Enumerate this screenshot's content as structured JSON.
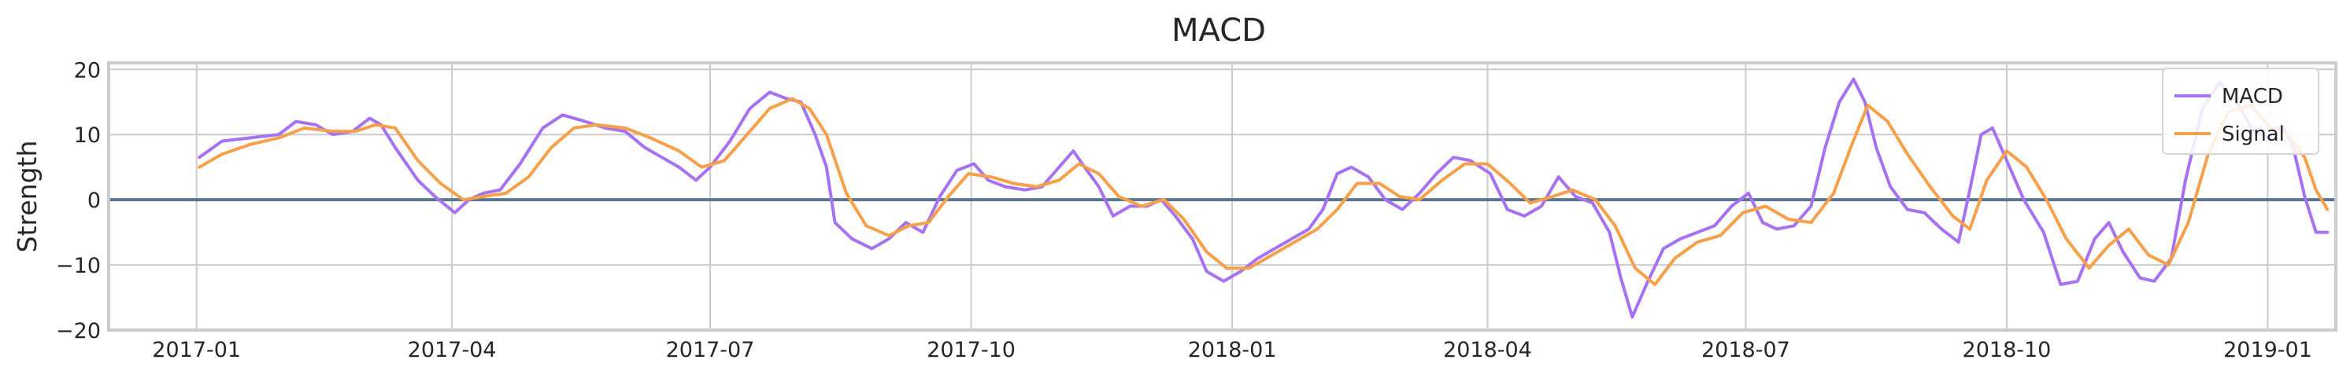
{
  "chart_data": {
    "type": "line",
    "title": "MACD",
    "ylabel": "Strength",
    "xlabel": "",
    "xlim": [
      "2016-12-01",
      "2019-01-25"
    ],
    "ylim": [
      -20,
      21
    ],
    "grid": true,
    "legend_position": "top-right",
    "x_ticks": [
      "2017-01-01",
      "2017-04-01",
      "2017-07-01",
      "2017-10-01",
      "2018-01-01",
      "2018-04-01",
      "2018-07-01",
      "2018-10-01",
      "2019-01-01"
    ],
    "x_tick_labels": [
      "2017-01",
      "2017-04",
      "2017-07",
      "2017-10",
      "2018-01",
      "2018-04",
      "2018-07",
      "2018-10",
      "2019-01"
    ],
    "y_ticks": [
      -20,
      -10,
      0,
      10,
      20
    ],
    "y_tick_labels": [
      "−20",
      "−10",
      "0",
      "10",
      "20"
    ],
    "reference_line": {
      "y": 0,
      "color": "#5a7690"
    },
    "series": [
      {
        "name": "MACD",
        "color": "#a772f2",
        "points": [
          [
            "2017-01-02",
            6.5
          ],
          [
            "2017-01-10",
            9.0
          ],
          [
            "2017-01-20",
            9.5
          ],
          [
            "2017-01-30",
            10.0
          ],
          [
            "2017-02-05",
            12.0
          ],
          [
            "2017-02-12",
            11.5
          ],
          [
            "2017-02-18",
            10.0
          ],
          [
            "2017-02-25",
            10.5
          ],
          [
            "2017-03-03",
            12.5
          ],
          [
            "2017-03-07",
            11.5
          ],
          [
            "2017-03-12",
            8.0
          ],
          [
            "2017-03-20",
            3.0
          ],
          [
            "2017-03-26",
            0.5
          ],
          [
            "2017-04-02",
            -2.0
          ],
          [
            "2017-04-07",
            0.0
          ],
          [
            "2017-04-12",
            1.0
          ],
          [
            "2017-04-18",
            1.5
          ],
          [
            "2017-04-25",
            5.5
          ],
          [
            "2017-05-03",
            11.0
          ],
          [
            "2017-05-10",
            13.0
          ],
          [
            "2017-05-18",
            12.0
          ],
          [
            "2017-05-25",
            11.0
          ],
          [
            "2017-06-01",
            10.5
          ],
          [
            "2017-06-08",
            8.0
          ],
          [
            "2017-06-14",
            6.5
          ],
          [
            "2017-06-20",
            5.0
          ],
          [
            "2017-06-26",
            3.0
          ],
          [
            "2017-07-01",
            5.0
          ],
          [
            "2017-07-08",
            9.0
          ],
          [
            "2017-07-15",
            14.0
          ],
          [
            "2017-07-22",
            16.5
          ],
          [
            "2017-07-28",
            15.5
          ],
          [
            "2017-08-02",
            15.0
          ],
          [
            "2017-08-07",
            10.0
          ],
          [
            "2017-08-11",
            5.0
          ],
          [
            "2017-08-14",
            -3.5
          ],
          [
            "2017-08-20",
            -6.0
          ],
          [
            "2017-08-27",
            -7.5
          ],
          [
            "2017-09-02",
            -6.0
          ],
          [
            "2017-09-08",
            -3.5
          ],
          [
            "2017-09-14",
            -5.0
          ],
          [
            "2017-09-20",
            0.5
          ],
          [
            "2017-09-26",
            4.5
          ],
          [
            "2017-10-02",
            5.5
          ],
          [
            "2017-10-07",
            3.0
          ],
          [
            "2017-10-13",
            2.0
          ],
          [
            "2017-10-20",
            1.5
          ],
          [
            "2017-10-26",
            2.0
          ],
          [
            "2017-11-01",
            5.0
          ],
          [
            "2017-11-06",
            7.5
          ],
          [
            "2017-11-10",
            5.0
          ],
          [
            "2017-11-15",
            2.0
          ],
          [
            "2017-11-20",
            -2.5
          ],
          [
            "2017-11-26",
            -1.0
          ],
          [
            "2017-12-02",
            -1.0
          ],
          [
            "2017-12-07",
            0.0
          ],
          [
            "2017-12-12",
            -2.5
          ],
          [
            "2017-12-18",
            -6.0
          ],
          [
            "2017-12-23",
            -11.0
          ],
          [
            "2017-12-29",
            -12.5
          ],
          [
            "2018-01-04",
            -11.0
          ],
          [
            "2018-01-10",
            -9.0
          ],
          [
            "2018-01-16",
            -7.5
          ],
          [
            "2018-01-22",
            -6.0
          ],
          [
            "2018-01-28",
            -4.5
          ],
          [
            "2018-02-02",
            -1.5
          ],
          [
            "2018-02-07",
            4.0
          ],
          [
            "2018-02-12",
            5.0
          ],
          [
            "2018-02-18",
            3.5
          ],
          [
            "2018-02-24",
            0.0
          ],
          [
            "2018-03-02",
            -1.5
          ],
          [
            "2018-03-08",
            1.0
          ],
          [
            "2018-03-14",
            4.0
          ],
          [
            "2018-03-20",
            6.5
          ],
          [
            "2018-03-26",
            6.0
          ],
          [
            "2018-04-02",
            4.0
          ],
          [
            "2018-04-08",
            -1.5
          ],
          [
            "2018-04-14",
            -2.5
          ],
          [
            "2018-04-20",
            -1.0
          ],
          [
            "2018-04-26",
            3.5
          ],
          [
            "2018-05-02",
            0.5
          ],
          [
            "2018-05-08",
            -0.5
          ],
          [
            "2018-05-14",
            -5.0
          ],
          [
            "2018-05-18",
            -12.0
          ],
          [
            "2018-05-22",
            -18.0
          ],
          [
            "2018-05-27",
            -13.0
          ],
          [
            "2018-06-02",
            -7.5
          ],
          [
            "2018-06-08",
            -6.0
          ],
          [
            "2018-06-14",
            -5.0
          ],
          [
            "2018-06-20",
            -4.0
          ],
          [
            "2018-06-26",
            -1.0
          ],
          [
            "2018-07-02",
            1.0
          ],
          [
            "2018-07-07",
            -3.5
          ],
          [
            "2018-07-12",
            -4.5
          ],
          [
            "2018-07-18",
            -4.0
          ],
          [
            "2018-07-24",
            -1.0
          ],
          [
            "2018-07-29",
            8.0
          ],
          [
            "2018-08-03",
            15.0
          ],
          [
            "2018-08-08",
            18.5
          ],
          [
            "2018-08-12",
            15.0
          ],
          [
            "2018-08-16",
            8.0
          ],
          [
            "2018-08-21",
            2.0
          ],
          [
            "2018-08-27",
            -1.5
          ],
          [
            "2018-09-02",
            -2.0
          ],
          [
            "2018-09-08",
            -4.5
          ],
          [
            "2018-09-14",
            -6.5
          ],
          [
            "2018-09-18",
            1.5
          ],
          [
            "2018-09-22",
            10.0
          ],
          [
            "2018-09-26",
            11.0
          ],
          [
            "2018-10-01",
            6.0
          ],
          [
            "2018-10-07",
            0.0
          ],
          [
            "2018-10-14",
            -5.0
          ],
          [
            "2018-10-20",
            -13.0
          ],
          [
            "2018-10-26",
            -12.5
          ],
          [
            "2018-11-01",
            -6.0
          ],
          [
            "2018-11-06",
            -3.5
          ],
          [
            "2018-11-11",
            -8.0
          ],
          [
            "2018-11-17",
            -12.0
          ],
          [
            "2018-11-22",
            -12.5
          ],
          [
            "2018-11-28",
            -9.0
          ],
          [
            "2018-12-03",
            3.0
          ],
          [
            "2018-12-09",
            14.0
          ],
          [
            "2018-12-15",
            18.0
          ],
          [
            "2018-12-21",
            15.0
          ],
          [
            "2018-12-27",
            10.5
          ],
          [
            "2019-01-02",
            9.5
          ],
          [
            "2019-01-06",
            11.5
          ],
          [
            "2019-01-10",
            8.0
          ],
          [
            "2019-01-14",
            0.5
          ],
          [
            "2019-01-18",
            -5.0
          ],
          [
            "2019-01-22",
            -5.0
          ]
        ]
      },
      {
        "name": "Signal",
        "color": "#f7a04a",
        "points": [
          [
            "2017-01-02",
            5.0
          ],
          [
            "2017-01-10",
            7.0
          ],
          [
            "2017-01-20",
            8.5
          ],
          [
            "2017-01-30",
            9.5
          ],
          [
            "2017-02-08",
            11.0
          ],
          [
            "2017-02-18",
            10.5
          ],
          [
            "2017-02-26",
            10.5
          ],
          [
            "2017-03-05",
            11.5
          ],
          [
            "2017-03-12",
            11.0
          ],
          [
            "2017-03-20",
            6.0
          ],
          [
            "2017-03-28",
            2.5
          ],
          [
            "2017-04-05",
            0.0
          ],
          [
            "2017-04-12",
            0.5
          ],
          [
            "2017-04-20",
            1.0
          ],
          [
            "2017-04-28",
            3.5
          ],
          [
            "2017-05-06",
            8.0
          ],
          [
            "2017-05-14",
            11.0
          ],
          [
            "2017-05-22",
            11.5
          ],
          [
            "2017-06-01",
            11.0
          ],
          [
            "2017-06-10",
            9.5
          ],
          [
            "2017-06-20",
            7.5
          ],
          [
            "2017-06-28",
            5.0
          ],
          [
            "2017-07-06",
            6.0
          ],
          [
            "2017-07-14",
            10.0
          ],
          [
            "2017-07-22",
            14.0
          ],
          [
            "2017-07-30",
            15.5
          ],
          [
            "2017-08-05",
            14.0
          ],
          [
            "2017-08-11",
            10.0
          ],
          [
            "2017-08-18",
            1.0
          ],
          [
            "2017-08-25",
            -4.0
          ],
          [
            "2017-09-02",
            -5.5
          ],
          [
            "2017-09-09",
            -4.0
          ],
          [
            "2017-09-16",
            -3.5
          ],
          [
            "2017-09-23",
            0.5
          ],
          [
            "2017-09-30",
            4.0
          ],
          [
            "2017-10-08",
            3.5
          ],
          [
            "2017-10-16",
            2.5
          ],
          [
            "2017-10-24",
            2.0
          ],
          [
            "2017-11-01",
            3.0
          ],
          [
            "2017-11-08",
            5.5
          ],
          [
            "2017-11-15",
            4.0
          ],
          [
            "2017-11-22",
            0.5
          ],
          [
            "2017-11-30",
            -1.0
          ],
          [
            "2017-12-08",
            0.0
          ],
          [
            "2017-12-15",
            -3.0
          ],
          [
            "2017-12-23",
            -8.0
          ],
          [
            "2017-12-30",
            -10.5
          ],
          [
            "2018-01-07",
            -10.5
          ],
          [
            "2018-01-15",
            -8.5
          ],
          [
            "2018-01-23",
            -6.5
          ],
          [
            "2018-01-31",
            -4.5
          ],
          [
            "2018-02-07",
            -1.5
          ],
          [
            "2018-02-14",
            2.5
          ],
          [
            "2018-02-22",
            2.5
          ],
          [
            "2018-03-01",
            0.5
          ],
          [
            "2018-03-08",
            0.0
          ],
          [
            "2018-03-16",
            3.0
          ],
          [
            "2018-03-24",
            5.5
          ],
          [
            "2018-04-01",
            5.5
          ],
          [
            "2018-04-09",
            2.5
          ],
          [
            "2018-04-16",
            -0.5
          ],
          [
            "2018-04-24",
            0.5
          ],
          [
            "2018-05-01",
            1.5
          ],
          [
            "2018-05-09",
            0.0
          ],
          [
            "2018-05-16",
            -4.0
          ],
          [
            "2018-05-23",
            -10.5
          ],
          [
            "2018-05-30",
            -13.0
          ],
          [
            "2018-06-06",
            -9.0
          ],
          [
            "2018-06-14",
            -6.5
          ],
          [
            "2018-06-22",
            -5.5
          ],
          [
            "2018-06-30",
            -2.0
          ],
          [
            "2018-07-08",
            -1.0
          ],
          [
            "2018-07-16",
            -3.0
          ],
          [
            "2018-07-24",
            -3.5
          ],
          [
            "2018-08-01",
            1.0
          ],
          [
            "2018-08-07",
            8.0
          ],
          [
            "2018-08-13",
            14.5
          ],
          [
            "2018-08-20",
            12.0
          ],
          [
            "2018-08-27",
            7.0
          ],
          [
            "2018-09-04",
            2.0
          ],
          [
            "2018-09-12",
            -2.5
          ],
          [
            "2018-09-18",
            -4.5
          ],
          [
            "2018-09-24",
            3.0
          ],
          [
            "2018-10-01",
            7.5
          ],
          [
            "2018-10-08",
            5.0
          ],
          [
            "2018-10-15",
            0.0
          ],
          [
            "2018-10-22",
            -6.0
          ],
          [
            "2018-10-30",
            -10.5
          ],
          [
            "2018-11-06",
            -7.0
          ],
          [
            "2018-11-13",
            -4.5
          ],
          [
            "2018-11-20",
            -8.5
          ],
          [
            "2018-11-27",
            -10.0
          ],
          [
            "2018-12-04",
            -3.5
          ],
          [
            "2018-12-11",
            7.0
          ],
          [
            "2018-12-18",
            13.5
          ],
          [
            "2018-12-26",
            14.5
          ],
          [
            "2019-01-02",
            11.0
          ],
          [
            "2019-01-08",
            10.0
          ],
          [
            "2019-01-14",
            6.5
          ],
          [
            "2019-01-18",
            1.5
          ],
          [
            "2019-01-22",
            -1.5
          ]
        ]
      }
    ]
  }
}
